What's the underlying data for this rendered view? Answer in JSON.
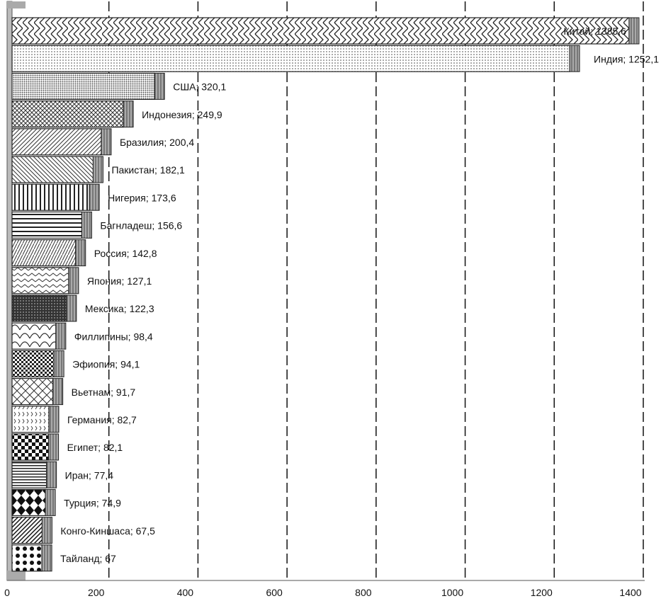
{
  "chart_data": {
    "type": "bar",
    "orientation": "horizontal",
    "title": "",
    "xlabel": "",
    "ylabel": "",
    "xlim": [
      0,
      1400
    ],
    "xticks": [
      0,
      200,
      400,
      600,
      800,
      1000,
      1200,
      1400
    ],
    "grid": "vertical-dashed",
    "categories": [
      "Китай",
      "Индия",
      "США",
      "Индонезия",
      "Бразилия",
      "Пакистан",
      "Нигерия",
      "Багнладеш",
      "Россия",
      "Япония",
      "Мексика",
      "Филлипины",
      "Эфиопия",
      "Вьетнам",
      "Германия",
      "Египет",
      "Иран",
      "Турция",
      "Конго-Киншаса",
      "Тайланд"
    ],
    "values": [
      1385.6,
      1252.1,
      320.1,
      249.9,
      200.4,
      182.1,
      173.6,
      156.6,
      142.8,
      127.1,
      122.3,
      98.4,
      94.1,
      91.7,
      82.7,
      82.1,
      77.4,
      74.9,
      67.5,
      67
    ],
    "labels": [
      "Китай; 1385,6",
      "Индия; 1252,1",
      "США; 320,1",
      "Индонезия; 249,9",
      "Бразилия; 200,4",
      "Пакистан; 182,1",
      "Нигерия; 173,6",
      "Багнладеш; 156,6",
      "Россия; 142,8",
      "Япония; 127,1",
      "Мексика; 122,3",
      "Филлипины; 98,4",
      "Эфиопия; 94,1",
      "Вьетнам; 91,7",
      "Германия; 82,7",
      "Египет; 82,1",
      "Иран; 77,4",
      "Турция; 74,9",
      "Конго-Киншаса; 67,5",
      "Тайланд; 67"
    ],
    "tick_labels": [
      "0",
      "200",
      "400",
      "600",
      "800",
      "1000",
      "1200",
      "1400"
    ],
    "colors": {
      "bar_stroke": "#222222",
      "bar_side": "#888888",
      "grid": "#111111",
      "axis": "#555555",
      "axis_block": "#aaaaaa"
    }
  }
}
